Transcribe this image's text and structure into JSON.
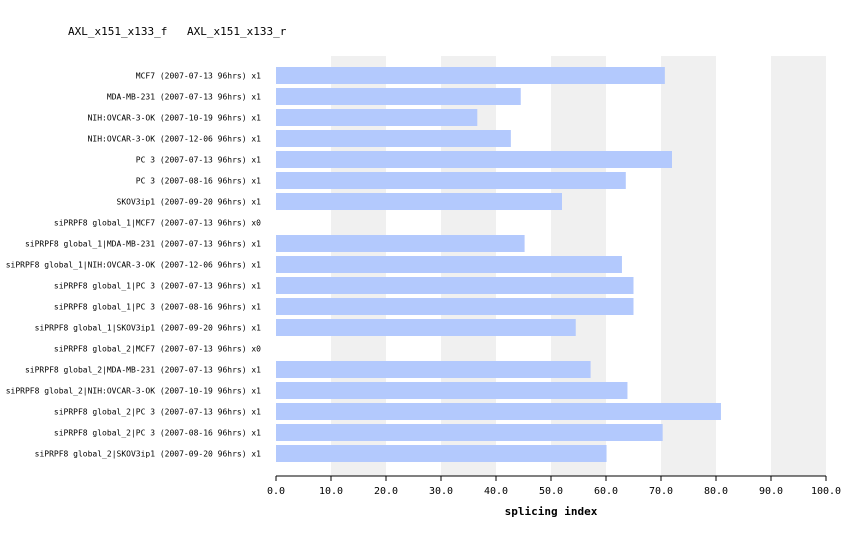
{
  "header": {
    "left_title": "AXL_x151_x133_f",
    "right_title": "AXL_x151_x133_r"
  },
  "chart_data": {
    "type": "bar",
    "orientation": "horizontal",
    "xlabel": "splicing index",
    "xlim": [
      0,
      100
    ],
    "ticks": [
      "0.0",
      "10.0",
      "20.0",
      "30.0",
      "40.0",
      "50.0",
      "60.0",
      "70.0",
      "80.0",
      "90.0",
      "100.0"
    ],
    "categories": [
      "MCF7 (2007-07-13 96hrs) x1",
      "MDA-MB-231 (2007-07-13 96hrs) x1",
      "NIH:OVCAR-3-OK (2007-10-19 96hrs) x1",
      "NIH:OVCAR-3-OK (2007-12-06 96hrs) x1",
      "PC 3 (2007-07-13 96hrs) x1",
      "PC 3 (2007-08-16 96hrs) x1",
      "SKOV3ip1 (2007-09-20 96hrs) x1",
      "siPRPF8 global_1|MCF7 (2007-07-13 96hrs) x0",
      "siPRPF8 global_1|MDA-MB-231 (2007-07-13 96hrs) x1",
      "siPRPF8 global_1|NIH:OVCAR-3-OK (2007-12-06 96hrs) x1",
      "siPRPF8 global_1|PC 3 (2007-07-13 96hrs) x1",
      "siPRPF8 global_1|PC 3 (2007-08-16 96hrs) x1",
      "siPRPF8 global_1|SKOV3ip1 (2007-09-20 96hrs) x1",
      "siPRPF8 global_2|MCF7 (2007-07-13 96hrs) x0",
      "siPRPF8 global_2|MDA-MB-231 (2007-07-13 96hrs) x1",
      "siPRPF8 global_2|NIH:OVCAR-3-OK (2007-10-19 96hrs) x1",
      "siPRPF8 global_2|PC 3 (2007-07-13 96hrs) x1",
      "siPRPF8 global_2|PC 3 (2007-08-16 96hrs) x1",
      "siPRPF8 global_2|SKOV3ip1 (2007-09-20 96hrs) x1"
    ],
    "values": [
      70.7,
      44.5,
      36.6,
      42.7,
      72.0,
      63.6,
      52.0,
      null,
      45.2,
      62.9,
      65.0,
      65.0,
      54.5,
      null,
      57.2,
      63.9,
      80.9,
      70.3,
      60.1
    ],
    "bar_color": "#b3c9fd",
    "band_color": "#f0f0f0",
    "grid": "alternating vertical bands"
  }
}
